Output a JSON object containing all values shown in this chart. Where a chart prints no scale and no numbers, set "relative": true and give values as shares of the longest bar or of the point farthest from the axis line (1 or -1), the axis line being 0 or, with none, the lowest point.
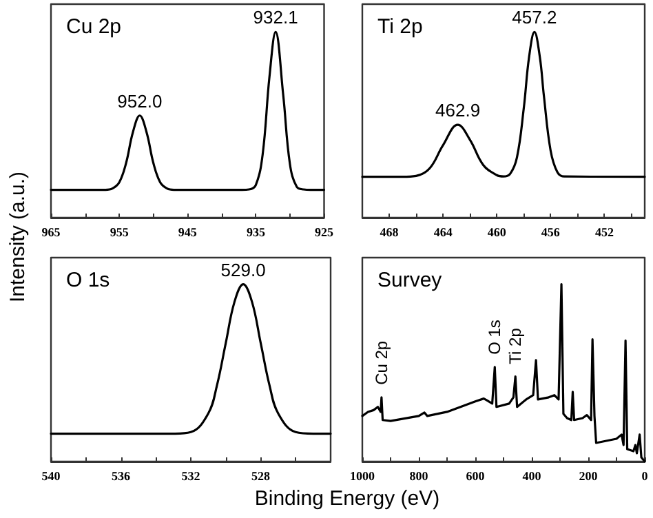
{
  "chart_data": [
    {
      "type": "line",
      "title": "Cu 2p",
      "ylabel": "Intensity (a.u.)",
      "relative": true,
      "marker": "none",
      "line_style": "solid",
      "xlim": [
        965,
        925
      ],
      "xticks": [
        965,
        {
          "value": 960,
          "label": null
        },
        955,
        {
          "value": 950,
          "label": null
        },
        945,
        {
          "value": 940,
          "label": null
        },
        935,
        {
          "value": 930,
          "label": null
        },
        925
      ],
      "annotations": [
        {
          "text": "952.0",
          "x": 952,
          "y": 0.55
        },
        {
          "text": "932.1",
          "x": 932.1,
          "y": 1
        }
      ],
      "series": [
        {
          "color": "#000000",
          "x": [
            965,
            960,
            957,
            956,
            955,
            954,
            953,
            952,
            951,
            950,
            949,
            948,
            947,
            940,
            937,
            936,
            935,
            934,
            933,
            932.1,
            931,
            930,
            929,
            928,
            927,
            925
          ],
          "values": [
            0.15,
            0.15,
            0.15,
            0.157,
            0.19,
            0.294,
            0.46,
            0.55,
            0.46,
            0.294,
            0.19,
            0.157,
            0.15,
            0.15,
            0.15,
            0.152,
            0.176,
            0.34,
            0.759,
            1,
            0.666,
            0.288,
            0.166,
            0.152,
            0.15,
            0.15
          ]
        }
      ]
    },
    {
      "type": "line",
      "title": "Ti 2p",
      "relative": true,
      "marker": "none",
      "line_style": "solid",
      "xlim": [
        470,
        449
      ],
      "xticks": [
        468,
        {
          "value": 466,
          "label": null
        },
        464,
        {
          "value": 462,
          "label": null
        },
        460,
        {
          "value": 458,
          "label": null
        },
        456,
        {
          "value": 454,
          "label": null
        },
        452,
        {
          "value": 450,
          "label": null
        }
      ],
      "annotations": [
        {
          "text": "462.9",
          "x": 462.9,
          "y": 0.5
        },
        {
          "text": "457.2",
          "x": 457.2,
          "y": 1
        }
      ],
      "series": [
        {
          "color": "#000000",
          "x": [
            470,
            467,
            466,
            465,
            464,
            462.9,
            462,
            461,
            460,
            459.5,
            459,
            458.5,
            458,
            457.6,
            457.2,
            456.8,
            456.5,
            456,
            455.5,
            455,
            449
          ],
          "values": [
            0.22,
            0.22,
            0.225,
            0.265,
            0.39,
            0.5,
            0.42,
            0.283,
            0.229,
            0.222,
            0.237,
            0.325,
            0.586,
            0.865,
            1,
            0.865,
            0.657,
            0.362,
            0.246,
            0.222,
            0.22
          ]
        }
      ]
    },
    {
      "type": "line",
      "title": "O 1s",
      "relative": true,
      "marker": "none",
      "line_style": "solid",
      "xlim": [
        540,
        524
      ],
      "xticks": [
        540,
        {
          "value": 538,
          "label": null
        },
        536,
        {
          "value": 534,
          "label": null
        },
        532,
        {
          "value": 530,
          "label": null
        },
        528,
        {
          "value": 526,
          "label": null
        }
      ],
      "annotations": [
        {
          "text": "529.0",
          "x": 529,
          "y": 1
        }
      ],
      "series": [
        {
          "color": "#000000",
          "x": [
            540,
            533,
            532,
            531,
            530.5,
            530,
            529.5,
            529,
            528.5,
            528,
            527.5,
            527,
            526,
            525,
            524
          ],
          "values": [
            0.157,
            0.157,
            0.166,
            0.271,
            0.431,
            0.668,
            0.901,
            1,
            0.901,
            0.668,
            0.431,
            0.271,
            0.166,
            0.157,
            0.157
          ]
        }
      ]
    },
    {
      "type": "line",
      "title": "Survey",
      "xlabel": "Binding Energy (eV)",
      "relative": true,
      "marker": "none",
      "line_style": "solid",
      "xlim": [
        1000,
        0
      ],
      "xticks": [
        1000,
        {
          "value": 900,
          "label": null
        },
        800,
        {
          "value": 700,
          "label": null
        },
        600,
        {
          "value": 500,
          "label": null
        },
        400,
        {
          "value": 300,
          "label": null
        },
        200,
        {
          "value": 100,
          "label": null
        },
        0
      ],
      "annotations": [
        {
          "text": "Cu 2p",
          "x": 932,
          "y": 0.362
        },
        {
          "text": "O 1s",
          "x": 531,
          "y": 0.533
        },
        {
          "text": "Ti 2p",
          "x": 458,
          "y": 0.479
        }
      ],
      "series": [
        {
          "color": "#000000",
          "x": [
            1000,
            980,
            960,
            945,
            935,
            932,
            928,
            900,
            800,
            780,
            770,
            700,
            600,
            570,
            560,
            540,
            531,
            525,
            480,
            465,
            458,
            452,
            420,
            395,
            385,
            378,
            340,
            320,
            305,
            295,
            288,
            275,
            260,
            255,
            250,
            220,
            205,
            190,
            185,
            178,
            172,
            100,
            82,
            75,
            68,
            62,
            40,
            33,
            28,
            18,
            12,
            0
          ],
          "values": [
            0.257,
            0.28,
            0.29,
            0.308,
            0.28,
            0.362,
            0.234,
            0.229,
            0.257,
            0.276,
            0.257,
            0.28,
            0.339,
            0.355,
            0.346,
            0.327,
            0.533,
            0.308,
            0.327,
            0.362,
            0.479,
            0.308,
            0.35,
            0.374,
            0.572,
            0.35,
            0.362,
            0.374,
            0.35,
            1,
            0.269,
            0.245,
            0.234,
            0.393,
            0.234,
            0.245,
            0.262,
            0.234,
            0.689,
            0.257,
            0.105,
            0.128,
            0.152,
            0.093,
            0.682,
            0.07,
            0.058,
            0.093,
            0.047,
            0.152,
            0.023,
            0
          ]
        }
      ]
    }
  ]
}
